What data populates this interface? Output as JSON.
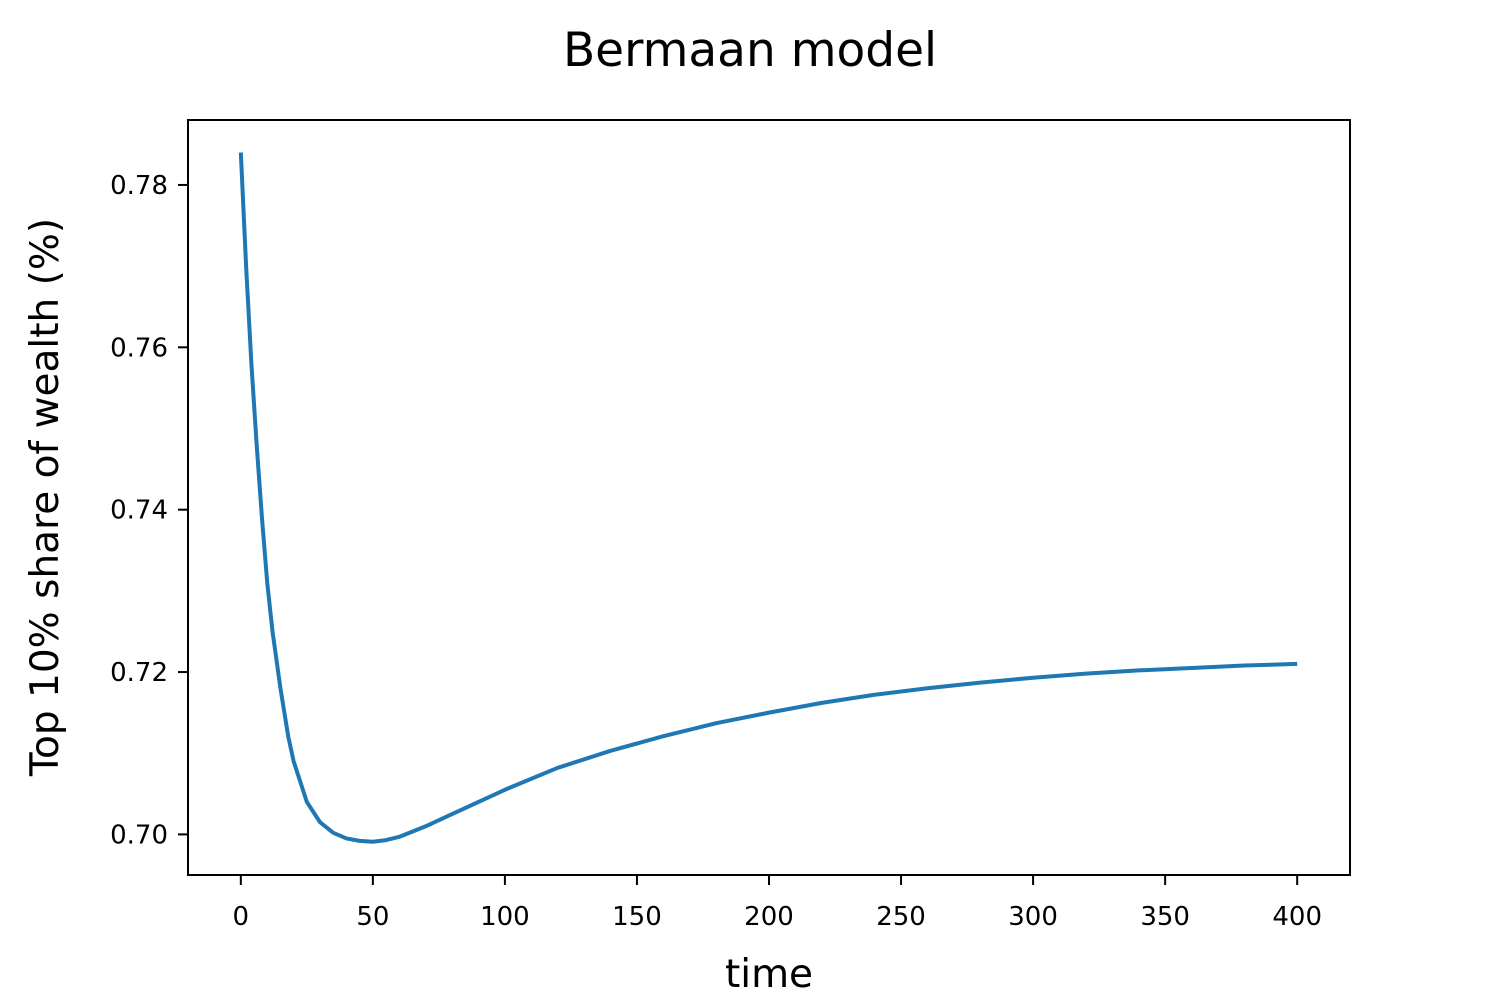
{
  "chart_data": {
    "type": "line",
    "title": "Bermaan model",
    "xlabel": "time",
    "ylabel": "Top 10% share of wealth (%)",
    "xlim": [
      -20,
      420
    ],
    "ylim": [
      0.695,
      0.788
    ],
    "xticks": [
      0,
      50,
      100,
      150,
      200,
      250,
      300,
      350,
      400
    ],
    "yticks": [
      0.7,
      0.72,
      0.74,
      0.76,
      0.78
    ],
    "ytick_labels": [
      "0.70",
      "0.72",
      "0.74",
      "0.76",
      "0.78"
    ],
    "grid": false,
    "legend": "none",
    "colors": {
      "line": "#1f77b4",
      "axis": "#000000",
      "background": "#ffffff"
    },
    "series": [
      {
        "x": [
          0,
          2,
          4,
          6,
          8,
          10,
          12,
          15,
          18,
          20,
          25,
          30,
          35,
          40,
          45,
          50,
          55,
          60,
          70,
          80,
          90,
          100,
          120,
          140,
          160,
          180,
          200,
          220,
          240,
          260,
          280,
          300,
          320,
          340,
          360,
          380,
          400
        ],
        "y": [
          0.784,
          0.77,
          0.758,
          0.748,
          0.739,
          0.731,
          0.725,
          0.718,
          0.712,
          0.709,
          0.704,
          0.7015,
          0.7002,
          0.6995,
          0.6992,
          0.6991,
          0.6993,
          0.6997,
          0.701,
          0.7025,
          0.704,
          0.7055,
          0.7082,
          0.7103,
          0.7121,
          0.7137,
          0.715,
          0.7162,
          0.7172,
          0.718,
          0.7187,
          0.7193,
          0.7198,
          0.7202,
          0.7205,
          0.7208,
          0.721
        ]
      }
    ]
  }
}
